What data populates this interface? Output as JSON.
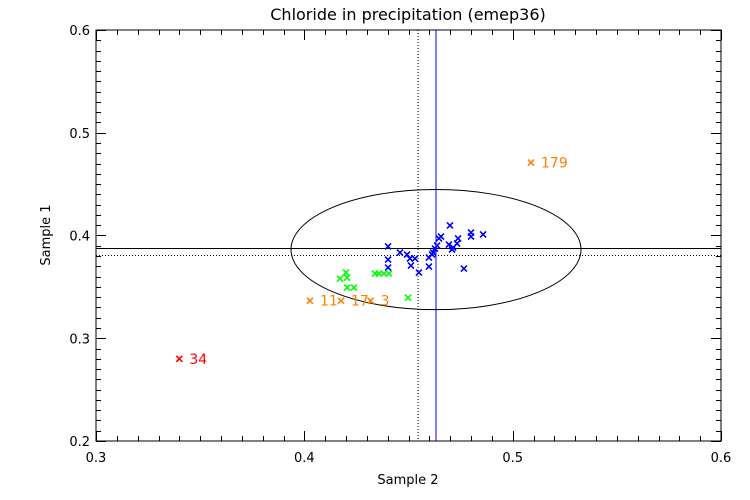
{
  "chart_data": {
    "type": "scatter",
    "title": "Chloride in precipitation (emep36)",
    "xlabel": "Sample 2",
    "ylabel": "Sample 1",
    "xlim": [
      0.3,
      0.6
    ],
    "ylim": [
      0.2,
      0.6
    ],
    "xticks": [
      "0.3",
      "0.4",
      "0.5",
      "0.6"
    ],
    "yticks": [
      "0.2",
      "0.3",
      "0.4",
      "0.5",
      "0.6"
    ],
    "xtick_values": [
      0.3,
      0.4,
      0.5,
      0.6
    ],
    "ytick_values": [
      0.2,
      0.3,
      0.4,
      0.5,
      0.6
    ],
    "minor_tick_step": 0.01,
    "grid": false,
    "reference_lines": {
      "median_x": 0.4632,
      "median_y": 0.3873,
      "median_color": "#0000ff",
      "assigned_x": 0.4546,
      "assigned_y": 0.3805,
      "assigned_style": "dotted"
    },
    "ellipse": {
      "center_x": 0.4632,
      "center_y": 0.3863,
      "semi_x": 0.0696,
      "semi_y": 0.0585,
      "color": "#000000"
    },
    "series": [
      {
        "color": "#0000ff",
        "points": [
          [
            0.4699,
            0.4098
          ],
          [
            0.48,
            0.4029
          ],
          [
            0.48,
            0.399
          ],
          [
            0.4858,
            0.401
          ],
          [
            0.4656,
            0.399
          ],
          [
            0.4646,
            0.3971
          ],
          [
            0.4738,
            0.3971
          ],
          [
            0.4733,
            0.3922
          ],
          [
            0.4694,
            0.3912
          ],
          [
            0.4714,
            0.3883
          ],
          [
            0.4709,
            0.3863
          ],
          [
            0.4637,
            0.3902
          ],
          [
            0.4627,
            0.3873
          ],
          [
            0.4618,
            0.3834
          ],
          [
            0.4613,
            0.3815
          ],
          [
            0.4598,
            0.3785
          ],
          [
            0.4402,
            0.3893
          ],
          [
            0.4459,
            0.3834
          ],
          [
            0.4493,
            0.3815
          ],
          [
            0.4507,
            0.3776
          ],
          [
            0.4531,
            0.3776
          ],
          [
            0.4402,
            0.3766
          ],
          [
            0.4402,
            0.3688
          ],
          [
            0.4512,
            0.3707
          ],
          [
            0.455,
            0.3639
          ],
          [
            0.4598,
            0.3698
          ],
          [
            0.4766,
            0.3678
          ]
        ]
      },
      {
        "color": "#00ff00",
        "points": [
          [
            0.42,
            0.3639
          ],
          [
            0.4171,
            0.358
          ],
          [
            0.4205,
            0.359
          ],
          [
            0.4339,
            0.3629
          ],
          [
            0.4358,
            0.3629
          ],
          [
            0.4382,
            0.3629
          ],
          [
            0.4406,
            0.3629
          ],
          [
            0.4205,
            0.3493
          ],
          [
            0.4238,
            0.3493
          ],
          [
            0.4498,
            0.3395
          ]
        ]
      }
    ],
    "labeled_points": [
      {
        "x": 0.5088,
        "y": 0.471,
        "label": "179",
        "color": "#ff8000"
      },
      {
        "x": 0.4027,
        "y": 0.3366,
        "label": "11",
        "color": "#ff8000"
      },
      {
        "x": 0.4176,
        "y": 0.3366,
        "label": "17",
        "color": "#ff8000"
      },
      {
        "x": 0.4318,
        "y": 0.3366,
        "label": "3",
        "color": "#ff8000"
      },
      {
        "x": 0.34,
        "y": 0.28,
        "label": "34",
        "color": "#ff0000"
      }
    ]
  }
}
